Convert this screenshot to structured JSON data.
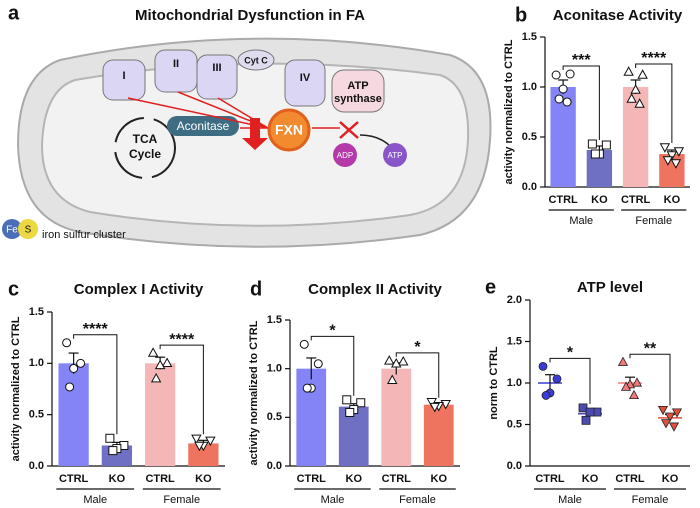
{
  "diagram": {
    "panel": "a",
    "title": "Mitochondrial Dysfunction in FA",
    "complexes": [
      "I",
      "II",
      "III",
      "Cyt C",
      "IV"
    ],
    "atp_synthase": [
      "ATP",
      "synthase"
    ],
    "tca": [
      "TCA",
      "Cycle"
    ],
    "aconitase": "Aconitase",
    "fxn": "FXN",
    "adp": "ADP",
    "atp": "ATP",
    "legend": {
      "fe": "Fe",
      "s": "S",
      "label": "iron sulfur cluster"
    }
  },
  "chart_data": [
    {
      "type": "bar",
      "panel": "b",
      "title": "Aconitase Activity",
      "ylabel": "activity normalized to CTRL",
      "categories": [
        "CTRL",
        "KO",
        "CTRL",
        "KO"
      ],
      "groups": [
        "Male",
        "Female"
      ],
      "significance": [
        "***",
        "****"
      ],
      "values": [
        1.0,
        0.37,
        1.0,
        0.33
      ],
      "errors": [
        0.07,
        0.04,
        0.07,
        0.04
      ],
      "colors": [
        "#8484f6",
        "#6f6fc4",
        "#f4b6b6",
        "#ef7460"
      ],
      "markers": [
        "circle",
        "square",
        "triangle",
        "triangle-down"
      ],
      "points": [
        [
          1.12,
          1.13,
          0.98,
          0.88,
          0.85
        ],
        [
          0.43,
          0.42,
          0.33,
          0.33
        ],
        [
          1.15,
          1.12,
          0.97,
          0.88,
          0.83
        ],
        [
          0.4,
          0.36,
          0.32,
          0.27,
          0.24
        ]
      ],
      "ylim": [
        0,
        1.5
      ],
      "yticks": [
        {
          "value": 0,
          "label": "0.0"
        },
        {
          "value": 0.5,
          "label": "0.5"
        },
        {
          "value": 1,
          "label": "1.0"
        },
        {
          "value": 1.5,
          "label": "1.5"
        }
      ]
    },
    {
      "type": "bar",
      "panel": "c",
      "title": "Complex I Activity",
      "ylabel": "activity normalized to CTRL",
      "categories": [
        "CTRL",
        "KO",
        "CTRL",
        "KO"
      ],
      "groups": [
        "Male",
        "Female"
      ],
      "significance": [
        "****",
        "****"
      ],
      "values": [
        1.0,
        0.2,
        1.0,
        0.22
      ],
      "errors": [
        0.1,
        0.03,
        0.06,
        0.03
      ],
      "colors": [
        "#8484f6",
        "#6f6fc4",
        "#f4b6b6",
        "#ef7460"
      ],
      "markers": [
        "circle",
        "square",
        "triangle",
        "triangle-down"
      ],
      "points": [
        [
          1.2,
          1.0,
          0.95,
          0.77
        ],
        [
          0.27,
          0.2,
          0.17,
          0.15
        ],
        [
          1.1,
          1.0,
          0.98,
          0.85
        ],
        [
          0.27,
          0.25,
          0.2,
          0.2
        ]
      ],
      "ylim": [
        0,
        1.5
      ],
      "yticks": [
        {
          "value": 0,
          "label": "0.0"
        },
        {
          "value": 0.5,
          "label": "0.5"
        },
        {
          "value": 1,
          "label": "1.0"
        },
        {
          "value": 1.5,
          "label": "1.5"
        }
      ]
    },
    {
      "type": "bar",
      "panel": "d",
      "title": "Complex II Activity",
      "ylabel": "activity normalized to CTRL",
      "categories": [
        "CTRL",
        "KO",
        "CTRL",
        "KO"
      ],
      "groups": [
        "Male",
        "Female"
      ],
      "significance": [
        "*",
        "*"
      ],
      "values": [
        1.0,
        0.61,
        1.0,
        0.63
      ],
      "errors": [
        0.11,
        0.03,
        0.06,
        0.01
      ],
      "colors": [
        "#8484f6",
        "#6f6fc4",
        "#f4b6b6",
        "#ef7460"
      ],
      "markers": [
        "circle",
        "square",
        "triangle",
        "triangle-down"
      ],
      "points": [
        [
          1.25,
          1.05,
          0.8,
          0.8
        ],
        [
          0.68,
          0.65,
          0.58,
          0.55
        ],
        [
          1.08,
          1.07,
          1.05,
          0.88
        ],
        [
          0.66,
          0.64,
          0.62,
          0.61
        ]
      ],
      "ylim": [
        0,
        1.5
      ],
      "yticks": [
        {
          "value": 0,
          "label": "0.0"
        },
        {
          "value": 0.5,
          "label": "0.5"
        },
        {
          "value": 1,
          "label": "1.0"
        },
        {
          "value": 1.5,
          "label": "1.5"
        }
      ]
    },
    {
      "type": "dot",
      "panel": "e",
      "title": "ATP level",
      "ylabel": "norm to CTRL",
      "categories": [
        "CTRL",
        "KO",
        "CTRL",
        "KO"
      ],
      "groups": [
        "Male",
        "Female"
      ],
      "significance": [
        "*",
        "**"
      ],
      "values": [
        1.0,
        0.63,
        1.0,
        0.58
      ],
      "errors": [
        0.1,
        0.03,
        0.07,
        0.04
      ],
      "colors": [
        "#3b3bd6",
        "#4b4bb0",
        "#f07a7a",
        "#e0503e"
      ],
      "markers": [
        "circle",
        "square",
        "triangle",
        "triangle-down"
      ],
      "points": [
        [
          1.2,
          1.05,
          0.88,
          0.85
        ],
        [
          0.7,
          0.65,
          0.65,
          0.55
        ],
        [
          1.25,
          1.0,
          0.98,
          0.95,
          0.85
        ],
        [
          0.68,
          0.65,
          0.6,
          0.52,
          0.48
        ]
      ],
      "ylim": [
        0,
        2
      ],
      "yticks": [
        {
          "value": 0,
          "label": "0.0"
        },
        {
          "value": 0.5,
          "label": "0.5"
        },
        {
          "value": 1,
          "label": "1.0"
        },
        {
          "value": 1.5,
          "label": "1.5"
        },
        {
          "value": 2,
          "label": "2.0"
        }
      ]
    }
  ]
}
